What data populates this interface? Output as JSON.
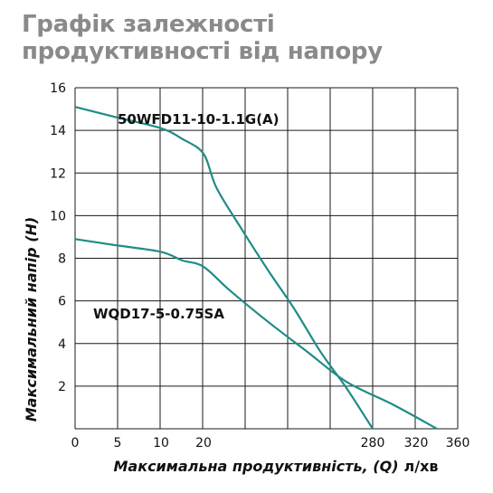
{
  "title": "Графік залежності продуктивності від напору",
  "chart_data": {
    "type": "line",
    "title": "Графік залежності продуктивності від напору",
    "xlabel": "Максимальна продуктивність, (Q)",
    "xunit": "л/хв",
    "ylabel": "Максимальний напір (H)",
    "x_tick_labels": [
      "0",
      "5",
      "10",
      "20",
      "280",
      "320",
      "360"
    ],
    "y_ticks": [
      2,
      4,
      6,
      8,
      10,
      12,
      14,
      16
    ],
    "ylim": [
      0,
      16
    ],
    "grid": true,
    "series": [
      {
        "name": "50WFD11-10-1.1G(A)",
        "color": "#1f8c86",
        "points": [
          {
            "x": 0,
            "y": 15.1
          },
          {
            "x": 5,
            "y": 14.6
          },
          {
            "x": 10,
            "y": 14.1
          },
          {
            "x": 15,
            "y": 13.6
          },
          {
            "x": 20,
            "y": 12.9
          },
          {
            "x": 40,
            "y": 11.3
          },
          {
            "x": 80,
            "y": 9.3
          },
          {
            "x": 120,
            "y": 7.4
          },
          {
            "x": 160,
            "y": 5.6
          },
          {
            "x": 200,
            "y": 3.6
          },
          {
            "x": 240,
            "y": 1.9
          },
          {
            "x": 280,
            "y": 0.0
          }
        ]
      },
      {
        "name": "WQD17-5-0.75SA",
        "color": "#1f8c86",
        "points": [
          {
            "x": 0,
            "y": 8.9
          },
          {
            "x": 5,
            "y": 8.6
          },
          {
            "x": 10,
            "y": 8.3
          },
          {
            "x": 15,
            "y": 7.9
          },
          {
            "x": 20,
            "y": 7.6
          },
          {
            "x": 60,
            "y": 6.5
          },
          {
            "x": 120,
            "y": 5.0
          },
          {
            "x": 180,
            "y": 3.6
          },
          {
            "x": 240,
            "y": 2.2
          },
          {
            "x": 300,
            "y": 1.1
          },
          {
            "x": 340,
            "y": 0.0
          }
        ]
      }
    ]
  }
}
